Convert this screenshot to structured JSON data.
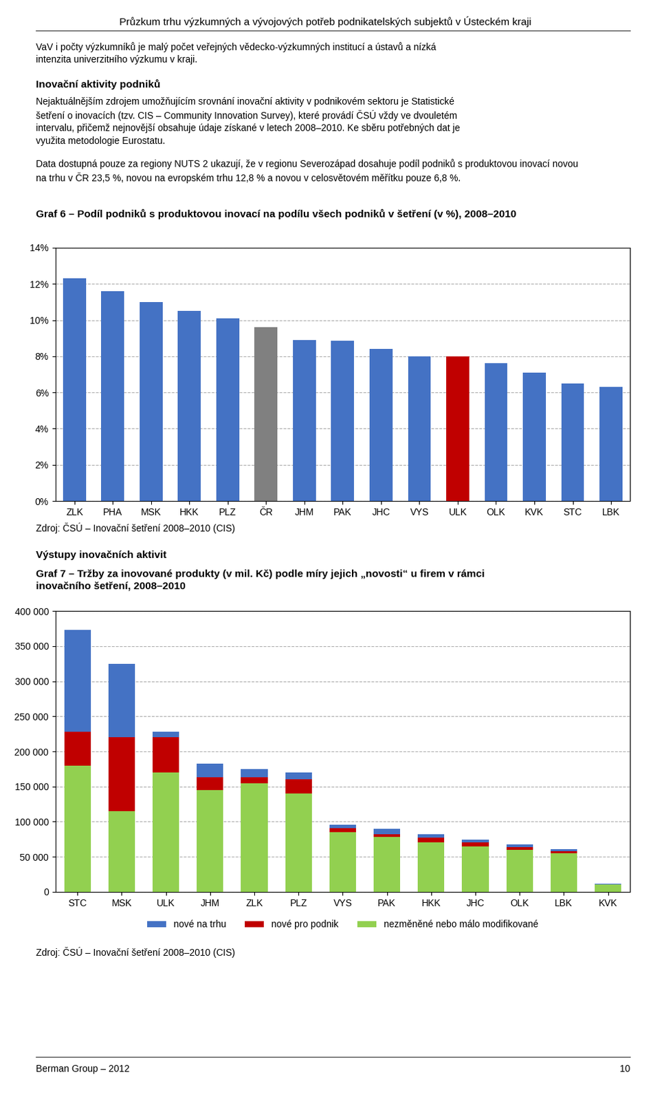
{
  "title": "Průzkum trhu výzkumných a vývojových potřeb podnikatelských subjektů v Ústeckém kraji",
  "annotations": [
    "VaV i počty výzkumníků je malý počet veřejných vědecko-výzkumných institucí a ústavů a nízká\nintenzita univerzitнího výzkumu v kraji.",
    "Inovační aktivity podniků",
    "Nejaktuálnějším zdrojem umožňujícím srovnání inovační aktivity v podnikovém sektoru je Statistické\nšetření o inovacích (tzv. CIS – Community Innovation Survey), které provádí ČSÚ vždy ve dvouletém\nintervalu, přičemž nejnovější obsahuje údaje získané v letech 2008–2010. Ke sběru potřebných dat je\nvyužita metodologie Eurostatu.",
    "Data dostupná pouze za regiony NUTS 2 ukazují, že v regionu Severozápad dosahuje podíl podniků s produktovou inovací novou\nna trhu v ČR 23,5 %, novou na evropském trhu 12,8 % a novou v celosvětovém měřítku pouze 6,8 %.",
    "Výstupy inovačních aktivit",
    "Berman Group – 2012",
    "10"
  ],
  "chart_data": [
    {
      "type": "bar",
      "title": "Graf 6 – Podíl podniků s produktovou inovací na podílu všech podniků v šetření (v %), 2008–2010",
      "categories": [
        "ZLK",
        "PHA",
        "MSK",
        "HKK",
        "PLZ",
        "ČR",
        "JHM",
        "PAK",
        "JHC",
        "VYS",
        "ULK",
        "OLK",
        "KVK",
        "STC",
        "LBK"
      ],
      "values": [
        12.3,
        11.6,
        11.0,
        10.5,
        10.1,
        9.6,
        8.9,
        8.85,
        8.4,
        8.0,
        8.0,
        7.6,
        7.1,
        6.5,
        6.3
      ],
      "colors": [
        "#4472C4",
        "#4472C4",
        "#4472C4",
        "#4472C4",
        "#4472C4",
        "#808080",
        "#4472C4",
        "#4472C4",
        "#4472C4",
        "#4472C4",
        "#C00000",
        "#4472C4",
        "#4472C4",
        "#4472C4",
        "#4472C4"
      ],
      "ylim": [
        0,
        14
      ],
      "yticks": [
        {
          "value": 0,
          "label": "0%"
        },
        {
          "value": 2,
          "label": "2%"
        },
        {
          "value": 4,
          "label": "4%"
        },
        {
          "value": 6,
          "label": "6%"
        },
        {
          "value": 8,
          "label": "8%"
        },
        {
          "value": 10,
          "label": "10%"
        },
        {
          "value": 12,
          "label": "12%"
        },
        {
          "value": 14,
          "label": "14%"
        }
      ],
      "grid": true,
      "annotations": [
        "Zdroj: ČSÚ – Inovační šetření 2008–2010 (CIS)"
      ]
    },
    {
      "type": "bar",
      "stacked": true,
      "title": "Graf 7 – Tržby za inovované produkty (v mil. Kč) podle míry jejich „novosti“ u firem v rámci\ninovačního šetření, 2008–2010",
      "categories": [
        "STC",
        "MSK",
        "ULK",
        "JHM",
        "ZLK",
        "PLZ",
        "VYS",
        "PAK",
        "HKK",
        "JHC",
        "OLK",
        "LBK",
        "KVK"
      ],
      "series": [
        {
          "name": "nezměněné nebo málo modifikované",
          "color": "#92D050",
          "values": [
            180000,
            115000,
            170000,
            145000,
            155000,
            140000,
            85000,
            78000,
            70000,
            65000,
            60000,
            55000,
            10000
          ]
        },
        {
          "name": "nové pro podnik",
          "color": "#C00000",
          "values": [
            48000,
            105000,
            50000,
            18000,
            8000,
            20000,
            6000,
            4000,
            7000,
            5000,
            4000,
            3000,
            500
          ]
        },
        {
          "name": "nové na trhu",
          "color": "#4472C4",
          "values": [
            145000,
            105000,
            8000,
            20000,
            12000,
            10000,
            5000,
            8000,
            5000,
            4000,
            3500,
            3000,
            1000
          ]
        }
      ],
      "ylim": [
        0,
        400000
      ],
      "yticks": [
        0,
        {
          "value": 50000,
          "label": "50 000"
        },
        {
          "value": 100000,
          "label": "100 000"
        },
        {
          "value": 150000,
          "label": "150 000"
        },
        {
          "value": 200000,
          "label": "200 000"
        },
        {
          "value": 250000,
          "label": "250 000"
        },
        {
          "value": 300000,
          "label": "300 000"
        },
        {
          "value": 350000,
          "label": "350 000"
        },
        {
          "value": 400000,
          "label": "400 000"
        }
      ],
      "grid": true,
      "legend": "upper center",
      "annotations": [
        "Zdroj: ČSÚ – Inovační šetření 2008–2010 (CIS)"
      ]
    }
  ]
}
